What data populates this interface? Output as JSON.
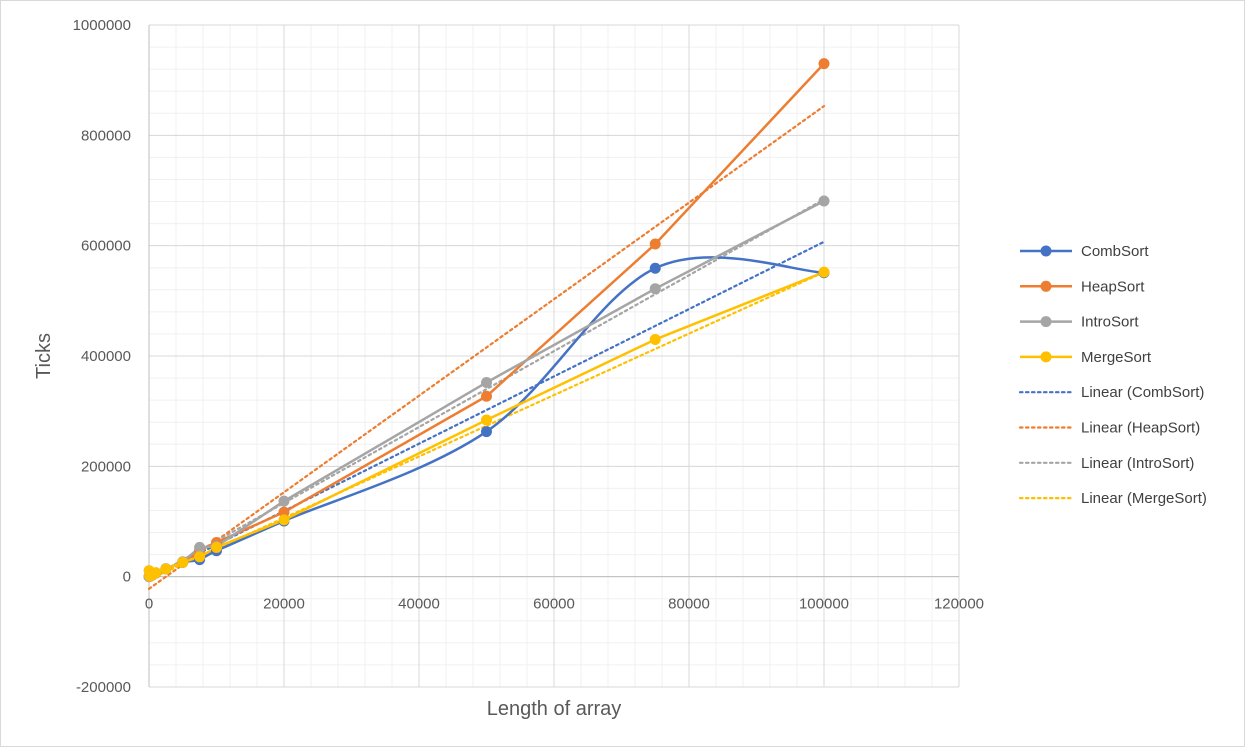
{
  "chart_data": {
    "type": "line",
    "title": "",
    "xlabel": "Length of array",
    "ylabel": "Ticks",
    "xlim": [
      0,
      120000
    ],
    "ylim": [
      -200000,
      1000000
    ],
    "x_ticks": [
      0,
      20000,
      40000,
      60000,
      80000,
      100000,
      120000
    ],
    "y_ticks": [
      -200000,
      0,
      200000,
      400000,
      600000,
      800000,
      1000000
    ],
    "x_tick_labels": [
      "0",
      "20000",
      "40000",
      "60000",
      "80000",
      "100000",
      "120000"
    ],
    "y_tick_labels": [
      "-200000",
      "0",
      "200000",
      "400000",
      "600000",
      "800000",
      "1000000"
    ],
    "grid": true,
    "legend_position": "right",
    "x": [
      10,
      100,
      500,
      1000,
      2500,
      5000,
      7500,
      10000,
      20000,
      50000,
      75000,
      100000
    ],
    "series": [
      {
        "name": "CombSort",
        "color": "#4472c4",
        "smooth": true,
        "values": [
          100,
          600,
          3000,
          6500,
          14000,
          26000,
          31000,
          47000,
          101000,
          263000,
          559000,
          551000
        ]
      },
      {
        "name": "HeapSort",
        "color": "#ed7d31",
        "smooth": false,
        "values": [
          100,
          600,
          3000,
          6500,
          14000,
          26000,
          48000,
          62000,
          117000,
          327000,
          603000,
          930000
        ]
      },
      {
        "name": "IntroSort",
        "color": "#a5a5a5",
        "smooth": false,
        "values": [
          100,
          700,
          3500,
          7000,
          14500,
          27000,
          53000,
          55000,
          137000,
          352000,
          522000,
          681000
        ]
      },
      {
        "name": "MergeSort",
        "color": "#ffc000",
        "smooth": false,
        "values": [
          11000,
          1000,
          3500,
          7000,
          14000,
          26000,
          36000,
          53000,
          103000,
          284000,
          430000,
          552000
        ]
      }
    ],
    "trendlines": [
      {
        "name": "Linear (CombSort)",
        "color": "#4472c4",
        "x": [
          0,
          100000
        ],
        "values": [
          -3000,
          607000
        ]
      },
      {
        "name": "Linear (HeapSort)",
        "color": "#ed7d31",
        "x": [
          0,
          100000
        ],
        "values": [
          -22000,
          853000
        ]
      },
      {
        "name": "Linear (IntroSort)",
        "color": "#a5a5a5",
        "x": [
          0,
          100000
        ],
        "values": [
          -4000,
          684000
        ]
      },
      {
        "name": "Linear (MergeSort)",
        "color": "#ffc000",
        "x": [
          0,
          100000
        ],
        "values": [
          -5000,
          552000
        ]
      }
    ]
  }
}
